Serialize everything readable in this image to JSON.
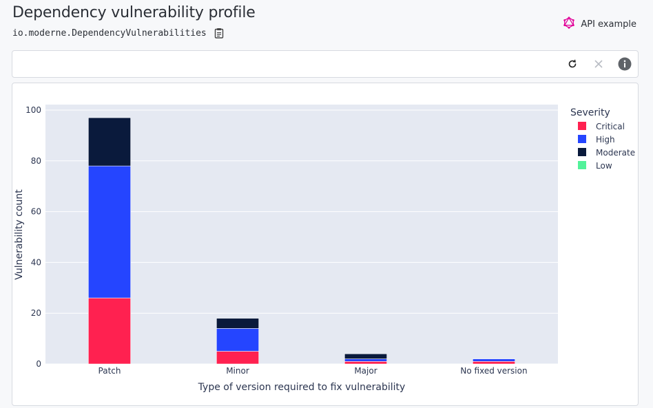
{
  "header": {
    "title": "Dependency vulnerability profile",
    "recipe_id": "io.moderne.DependencyVulnerabilities",
    "api_link_label": "API example"
  },
  "toolbar": {
    "icons": [
      "clipboard-icon",
      "graphql-icon",
      "refresh-icon",
      "close-icon",
      "info-icon"
    ]
  },
  "colors": {
    "critical": "#ff2150",
    "high": "#2545ff",
    "moderate": "#0a1a3c",
    "low": "#52f29a",
    "plot_bg": "#e5e9f2"
  },
  "chart_data": {
    "type": "bar",
    "stacked": true,
    "categories": [
      "Patch",
      "Minor",
      "Major",
      "No fixed version"
    ],
    "series": [
      {
        "name": "Critical",
        "values": [
          26,
          5,
          1,
          1
        ]
      },
      {
        "name": "High",
        "values": [
          52,
          9,
          1,
          1
        ]
      },
      {
        "name": "Moderate",
        "values": [
          19,
          4,
          2,
          0
        ]
      },
      {
        "name": "Low",
        "values": [
          0,
          0,
          0,
          0
        ]
      }
    ],
    "xlabel": "Type of version required to fix vulnerability",
    "ylabel": "Vulnerability count",
    "ylim": [
      0,
      100
    ],
    "yticks": [
      0,
      20,
      40,
      60,
      80,
      100
    ],
    "legend_title": "Severity",
    "legend_position": "right",
    "grid": true
  }
}
